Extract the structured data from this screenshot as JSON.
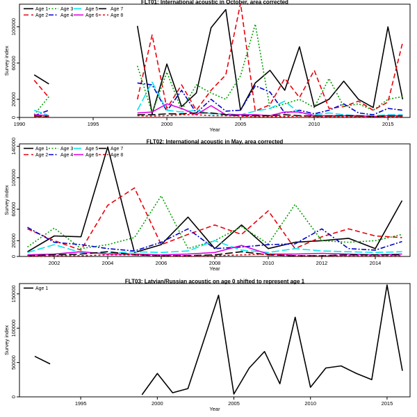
{
  "chart_data": [
    {
      "type": "line",
      "title": "FLT01:   International acoustic in October, area corrected",
      "xlabel": "Year",
      "ylabel": "Survey index",
      "xlim": [
        1990,
        2016.5
      ],
      "ylim": [
        0,
        125000
      ],
      "xticks": [
        1990,
        1995,
        2000,
        2005,
        2010,
        2015
      ],
      "yticks": [
        0,
        20000,
        60000,
        100000
      ],
      "legend_position": "top-left",
      "x": [
        1991,
        1992,
        1998,
        1999,
        2000,
        2001,
        2002,
        2003,
        2004,
        2005,
        2006,
        2007,
        2008,
        2009,
        2010,
        2011,
        2012,
        2013,
        2014,
        2015,
        2016
      ],
      "series": [
        {
          "name": "Age 1",
          "color": "#000000",
          "dash": "solid",
          "values": [
            47000,
            37000,
            101000,
            4000,
            59000,
            12000,
            27000,
            99000,
            119000,
            8000,
            38000,
            52000,
            30000,
            78000,
            12000,
            20000,
            40000,
            20000,
            11000,
            100000,
            20000
          ]
        },
        {
          "name": "Age 2",
          "color": "#e8000b",
          "dash": "dash",
          "values": [
            41000,
            22000,
            20000,
            91000,
            10000,
            36000,
            8000,
            30000,
            47000,
            126000,
            7000,
            14000,
            43000,
            22000,
            52000,
            10000,
            12000,
            18000,
            8000,
            17000,
            83000
          ]
        },
        {
          "name": "Age 3",
          "color": "#00a000",
          "dash": "dot",
          "values": [
            3000,
            23000,
            57000,
            5000,
            50000,
            8000,
            36000,
            27000,
            20000,
            46000,
            103000,
            10000,
            15000,
            20000,
            11000,
            43000,
            12000,
            15000,
            8000,
            20000,
            23000
          ]
        },
        {
          "name": "Age 4",
          "color": "#0000cc",
          "dash": "dashdot",
          "values": [
            2000,
            8000,
            38000,
            36000,
            7000,
            30000,
            5000,
            20000,
            7000,
            8000,
            35000,
            28000,
            5000,
            8000,
            4000,
            8000,
            15000,
            5000,
            3000,
            10000,
            8000
          ]
        },
        {
          "name": "Age 5",
          "color": "#00e5ee",
          "dash": "longdash",
          "values": [
            8000,
            2000,
            8000,
            39000,
            8000,
            6000,
            8000,
            4000,
            4000,
            3000,
            7000,
            10000,
            18000,
            5000,
            3000,
            5000,
            3000,
            2000,
            2000,
            3000,
            3000
          ]
        },
        {
          "name": "Age 6",
          "color": "#e000e0",
          "dash": "solid",
          "values": [
            3000,
            2000,
            5000,
            6000,
            15000,
            10000,
            3000,
            13000,
            3000,
            3000,
            3000,
            2000,
            6000,
            6000,
            2000,
            2000,
            2000,
            2000,
            1000,
            2000,
            2000
          ]
        },
        {
          "name": "Age 7",
          "color": "#000000",
          "dash": "longdash",
          "values": [
            1500,
            1000,
            3000,
            3000,
            4000,
            4000,
            5000,
            5000,
            3000,
            2000,
            2000,
            2000,
            3000,
            2000,
            1500,
            1500,
            2000,
            1500,
            1000,
            1500,
            1500
          ]
        },
        {
          "name": "Age 8",
          "color": "#e8000b",
          "dash": "shortdash",
          "values": [
            1000,
            500,
            2000,
            1500,
            2000,
            3000,
            3000,
            2000,
            2000,
            1500,
            1000,
            1000,
            1000,
            1500,
            1000,
            1000,
            1000,
            1000,
            500,
            1000,
            1000
          ]
        }
      ],
      "segments": [
        [
          0,
          1
        ],
        [
          2,
          20
        ]
      ]
    },
    {
      "type": "line",
      "title": "FLT02: International acoustic in May, area corrected",
      "xlabel": "Year",
      "ylabel": "Survey index",
      "xlim": [
        2000.7,
        2015.3
      ],
      "ylim": [
        0,
        143000
      ],
      "xticks": [
        2002,
        2004,
        2006,
        2008,
        2010,
        2012,
        2014
      ],
      "yticks": [
        0,
        20000,
        60000,
        100000,
        140000
      ],
      "legend_position": "top-left",
      "x": [
        2001,
        2002,
        2003,
        2004,
        2005,
        2006,
        2007,
        2008,
        2009,
        2010,
        2011,
        2012,
        2013,
        2014,
        2015
      ],
      "series": [
        {
          "name": "Age 1",
          "color": "#000000",
          "dash": "solid",
          "values": [
            6000,
            26000,
            25000,
            139000,
            5000,
            15000,
            50000,
            10000,
            40000,
            10000,
            18000,
            20000,
            23000,
            10000,
            71000
          ]
        },
        {
          "name": "Age 2",
          "color": "#e8000b",
          "dash": "dash",
          "values": [
            35000,
            20000,
            8000,
            65000,
            87000,
            15000,
            28000,
            40000,
            28000,
            58000,
            10000,
            25000,
            35000,
            26000,
            24000
          ]
        },
        {
          "name": "Age 3",
          "color": "#00a000",
          "dash": "dot",
          "values": [
            12000,
            36000,
            10000,
            15000,
            24000,
            77000,
            10000,
            20000,
            38000,
            16000,
            66000,
            20000,
            18000,
            20000,
            28000
          ]
        },
        {
          "name": "Age 4",
          "color": "#0000cc",
          "dash": "dashdot",
          "values": [
            37000,
            18000,
            15000,
            10000,
            7000,
            18000,
            35000,
            10000,
            12000,
            15000,
            16000,
            35000,
            10000,
            8000,
            19000
          ]
        },
        {
          "name": "Age 5",
          "color": "#00e5ee",
          "dash": "longdash",
          "values": [
            5000,
            15000,
            5000,
            4000,
            6000,
            5000,
            7000,
            20000,
            8000,
            5000,
            10000,
            7000,
            6000,
            5000,
            6000
          ]
        },
        {
          "name": "Age 6",
          "color": "#e000e0",
          "dash": "solid",
          "values": [
            2000,
            3000,
            6000,
            3000,
            3000,
            2000,
            3000,
            5000,
            14000,
            3000,
            3000,
            4000,
            3000,
            2000,
            3000
          ]
        },
        {
          "name": "Age 7",
          "color": "#000000",
          "dash": "longdash",
          "values": [
            1000,
            2000,
            3000,
            6000,
            2000,
            1000,
            1000,
            2000,
            6000,
            2000,
            1000,
            1000,
            2000,
            2000,
            2000
          ]
        },
        {
          "name": "Age 8",
          "color": "#e8000b",
          "dash": "shortdash",
          "values": [
            500,
            1000,
            1000,
            2000,
            2000,
            1000,
            500,
            1000,
            2000,
            3000,
            1000,
            1000,
            1000,
            1000,
            1000
          ]
        }
      ],
      "segments": [
        [
          0,
          14
        ]
      ]
    },
    {
      "type": "line",
      "title": "FLT03: Latvian/Russian acoustic on age 0 shifted to represent age 1",
      "xlabel": "Year",
      "ylabel": "Survey index",
      "xlim": [
        1991,
        2016.5
      ],
      "ylim": [
        0,
        165000
      ],
      "xticks": [
        1995,
        2000,
        2005,
        2010,
        2015
      ],
      "yticks": [
        0,
        50000,
        100000,
        150000
      ],
      "legend_position": "top-left",
      "x": [
        1992,
        1993,
        1999,
        2000,
        2001,
        2002,
        2003,
        2004,
        2005,
        2006,
        2007,
        2008,
        2009,
        2010,
        2011,
        2012,
        2013,
        2014,
        2015,
        2016
      ],
      "series": [
        {
          "name": "Age 1",
          "color": "#000000",
          "dash": "solid",
          "values": [
            59000,
            48000,
            3000,
            34000,
            6000,
            12000,
            80000,
            148000,
            4000,
            42000,
            66000,
            19000,
            116000,
            14000,
            42000,
            45000,
            34000,
            25000,
            163000,
            38000
          ]
        }
      ],
      "segments": [
        [
          0,
          1
        ],
        [
          2,
          19
        ]
      ]
    }
  ]
}
